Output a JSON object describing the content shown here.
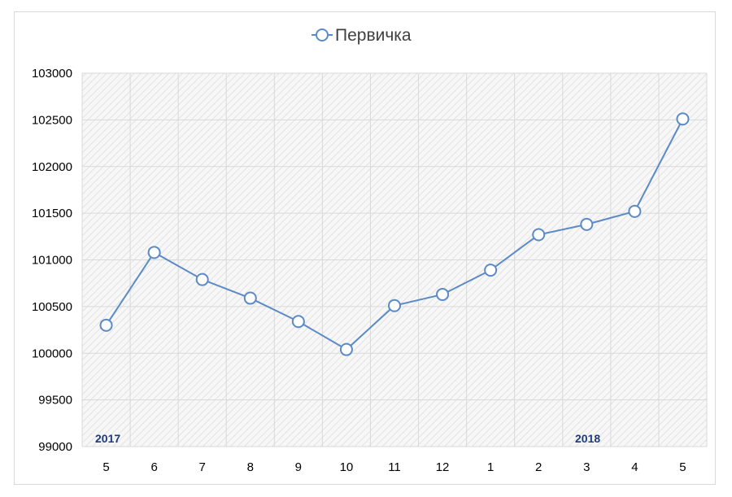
{
  "chart_data": {
    "type": "line",
    "title": "",
    "legend": "top-center",
    "categories": [
      "5",
      "6",
      "7",
      "8",
      "9",
      "10",
      "11",
      "12",
      "1",
      "2",
      "3",
      "4",
      "5"
    ],
    "series": [
      {
        "name": "Первичка",
        "values": [
          100300,
          101080,
          100790,
          100590,
          100340,
          100040,
          100510,
          100630,
          100890,
          101270,
          101380,
          101520,
          102510
        ]
      }
    ],
    "annotations": [
      "2017",
      "2018"
    ],
    "yticks": [
      "99000",
      "99500",
      "100000",
      "100500",
      "101000",
      "101500",
      "102000",
      "102500",
      "103000"
    ],
    "ylim": [
      99000,
      103000
    ],
    "grid": true,
    "colors": {
      "line": "#5b8ac6",
      "marker_fill": "#ffffff",
      "year_label": "#1f3a7a"
    }
  }
}
